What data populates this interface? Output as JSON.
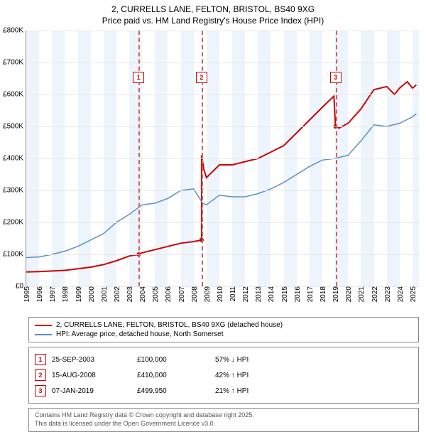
{
  "title_line1": "2, CURRELLS LANE, FELTON, BRISTOL, BS40 9XG",
  "title_line2": "Price paid vs. HM Land Registry's House Price Index (HPI)",
  "chart": {
    "type": "line",
    "background_color": "#ffffff",
    "grid_color": "#e8e8e8",
    "band_color": "#eef4fb",
    "axis_color": "#888888",
    "label_fontsize": 10,
    "x_years": [
      1995,
      1996,
      1997,
      1998,
      1999,
      2000,
      2001,
      2002,
      2003,
      2004,
      2005,
      2006,
      2007,
      2008,
      2009,
      2010,
      2011,
      2012,
      2013,
      2014,
      2015,
      2016,
      2017,
      2018,
      2019,
      2020,
      2021,
      2022,
      2023,
      2024,
      2025
    ],
    "y_ticks": [
      0,
      100000,
      200000,
      300000,
      400000,
      500000,
      600000,
      700000,
      800000
    ],
    "y_tick_labels": [
      "£0",
      "£100K",
      "£200K",
      "£300K",
      "£400K",
      "£500K",
      "£600K",
      "£700K",
      "£800K"
    ],
    "ylim": [
      0,
      800000
    ],
    "xlim": [
      1995,
      2025.5
    ],
    "bands": [
      [
        1995,
        1996
      ],
      [
        1997,
        1998
      ],
      [
        1999,
        2000
      ],
      [
        2001,
        2002
      ],
      [
        2003,
        2004
      ],
      [
        2005,
        2006
      ],
      [
        2007,
        2008
      ],
      [
        2009,
        2010
      ],
      [
        2011,
        2012
      ],
      [
        2013,
        2014
      ],
      [
        2015,
        2016
      ],
      [
        2017,
        2018
      ],
      [
        2019,
        2020
      ],
      [
        2021,
        2022
      ],
      [
        2023,
        2024
      ],
      [
        2025,
        2025.5
      ]
    ],
    "series": [
      {
        "name": "price_paid",
        "color": "#cc0000",
        "width": 2,
        "points": [
          [
            1995,
            45000
          ],
          [
            1996,
            46000
          ],
          [
            1997,
            48000
          ],
          [
            1998,
            50000
          ],
          [
            1999,
            55000
          ],
          [
            2000,
            60000
          ],
          [
            2001,
            68000
          ],
          [
            2002,
            80000
          ],
          [
            2003,
            95000
          ],
          [
            2003.73,
            100000
          ],
          [
            2004,
            105000
          ],
          [
            2005,
            115000
          ],
          [
            2006,
            125000
          ],
          [
            2007,
            135000
          ],
          [
            2008,
            140000
          ],
          [
            2008.62,
            145000
          ],
          [
            2008.62,
            410000
          ],
          [
            2008.8,
            365000
          ],
          [
            2009,
            340000
          ],
          [
            2010,
            380000
          ],
          [
            2011,
            380000
          ],
          [
            2012,
            390000
          ],
          [
            2013,
            400000
          ],
          [
            2014,
            420000
          ],
          [
            2015,
            440000
          ],
          [
            2016,
            480000
          ],
          [
            2017,
            520000
          ],
          [
            2018,
            560000
          ],
          [
            2018.9,
            595000
          ],
          [
            2019.02,
            499950
          ],
          [
            2019.3,
            495000
          ],
          [
            2020,
            510000
          ],
          [
            2021,
            555000
          ],
          [
            2022,
            615000
          ],
          [
            2023,
            625000
          ],
          [
            2023.6,
            600000
          ],
          [
            2024,
            620000
          ],
          [
            2024.6,
            640000
          ],
          [
            2025,
            620000
          ],
          [
            2025.3,
            630000
          ]
        ]
      },
      {
        "name": "hpi",
        "color": "#5b8fc7",
        "width": 1.5,
        "points": [
          [
            1995,
            90000
          ],
          [
            1996,
            92000
          ],
          [
            1997,
            100000
          ],
          [
            1998,
            110000
          ],
          [
            1999,
            125000
          ],
          [
            2000,
            145000
          ],
          [
            2001,
            165000
          ],
          [
            2002,
            200000
          ],
          [
            2003,
            225000
          ],
          [
            2004,
            255000
          ],
          [
            2005,
            260000
          ],
          [
            2006,
            275000
          ],
          [
            2007,
            300000
          ],
          [
            2008,
            305000
          ],
          [
            2008.7,
            260000
          ],
          [
            2009,
            255000
          ],
          [
            2010,
            285000
          ],
          [
            2011,
            280000
          ],
          [
            2012,
            280000
          ],
          [
            2013,
            290000
          ],
          [
            2014,
            305000
          ],
          [
            2015,
            325000
          ],
          [
            2016,
            350000
          ],
          [
            2017,
            375000
          ],
          [
            2018,
            395000
          ],
          [
            2019,
            400000
          ],
          [
            2020,
            410000
          ],
          [
            2021,
            455000
          ],
          [
            2022,
            505000
          ],
          [
            2023,
            500000
          ],
          [
            2024,
            510000
          ],
          [
            2025,
            530000
          ],
          [
            2025.3,
            540000
          ]
        ]
      }
    ],
    "markers": [
      {
        "n": "1",
        "year": 2003.73,
        "label_y": 58
      },
      {
        "n": "2",
        "year": 2008.62,
        "label_y": 58
      },
      {
        "n": "3",
        "year": 2019.02,
        "label_y": 58
      }
    ],
    "marker_line_color": "#d06060"
  },
  "legend": {
    "items": [
      {
        "color": "#cc0000",
        "label": "2, CURRELLS LANE, FELTON, BRISTOL, BS40 9XG (detached house)"
      },
      {
        "color": "#5b8fc7",
        "label": "HPI: Average price, detached house, North Somerset"
      }
    ]
  },
  "sales": [
    {
      "n": "1",
      "date": "25-SEP-2003",
      "price": "£100,000",
      "delta": "57% ↓ HPI"
    },
    {
      "n": "2",
      "date": "15-AUG-2008",
      "price": "£410,000",
      "delta": "42% ↑ HPI"
    },
    {
      "n": "3",
      "date": "07-JAN-2019",
      "price": "£499,950",
      "delta": "21% ↑ HPI"
    }
  ],
  "footer_line1": "Contains HM Land Registry data © Crown copyright and database right 2025.",
  "footer_line2": "This data is licensed under the Open Government Licence v3.0."
}
